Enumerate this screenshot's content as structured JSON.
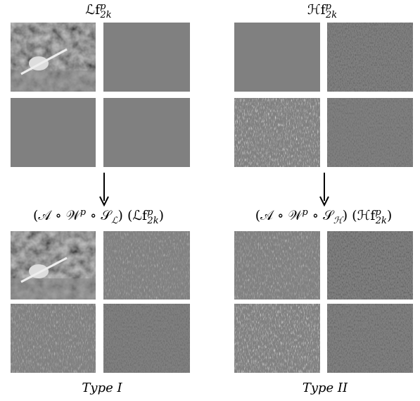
{
  "labels": {
    "top_left": [
      {
        "text": "ℒf"
      },
      {
        "sup": "p"
      },
      {
        "sub": "2k"
      }
    ],
    "top_right": [
      {
        "text": "ℋf"
      },
      {
        "sup": "p"
      },
      {
        "sub": "2k"
      }
    ],
    "mid_left": [
      {
        "text": "(𝒜 ∘ 𝒲"
      },
      {
        "sup": "p"
      },
      {
        "text": " ∘ 𝒮"
      },
      {
        "sub": "ℒ"
      },
      {
        "text": ") (ℒf"
      },
      {
        "sup": "p"
      },
      {
        "sub": "2k"
      },
      {
        "text": ")"
      }
    ],
    "mid_right": [
      {
        "text": "(𝒜 ∘ 𝒲"
      },
      {
        "sup": "p"
      },
      {
        "text": " ∘ 𝒮"
      },
      {
        "sub": "ℋ"
      },
      {
        "text": ") (ℋf"
      },
      {
        "sup": "p"
      },
      {
        "sub": "2k"
      },
      {
        "text": ")"
      }
    ]
  },
  "captions": {
    "left": "Type I",
    "right": "Type II"
  }
}
